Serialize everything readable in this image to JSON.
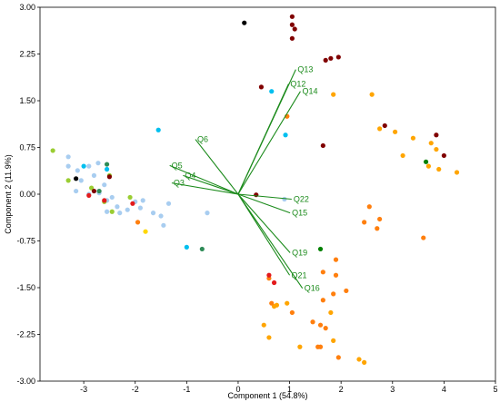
{
  "chart_data": {
    "type": "scatter",
    "title": "",
    "xlabel": "Component 1 (54.8%)",
    "ylabel": "Component 2 (11.9%)",
    "xlim": [
      -3.85,
      5.0
    ],
    "ylim": [
      -3.0,
      3.0
    ],
    "x_ticks": [
      {
        "value": -3,
        "label": "-3"
      },
      {
        "value": -2,
        "label": "-2"
      },
      {
        "value": -1,
        "label": "-1"
      },
      {
        "value": 0,
        "label": "0"
      },
      {
        "value": 1,
        "label": "1"
      },
      {
        "value": 2,
        "label": "2"
      },
      {
        "value": 3,
        "label": "3"
      },
      {
        "value": 4,
        "label": "4"
      },
      {
        "value": 5,
        "label": "5"
      }
    ],
    "y_ticks": [
      {
        "value": -3.0,
        "label": "-3.00"
      },
      {
        "value": -2.25,
        "label": "-2.25"
      },
      {
        "value": -1.5,
        "label": "-1.50"
      },
      {
        "value": -0.75,
        "label": "-0.75"
      },
      {
        "value": 0.0,
        "label": "0.00"
      },
      {
        "value": 0.75,
        "label": "0.75"
      },
      {
        "value": 1.5,
        "label": "1.50"
      },
      {
        "value": 2.25,
        "label": "2.25"
      },
      {
        "value": 3.0,
        "label": "3.00"
      }
    ],
    "grid": false,
    "loading_color": "#1a8a1a",
    "loadings": [
      {
        "label": "Q13",
        "x": 1.12,
        "y": 2.0
      },
      {
        "label": "Q12",
        "x": 0.98,
        "y": 1.77
      },
      {
        "label": "Q14",
        "x": 1.21,
        "y": 1.65
      },
      {
        "label": "Q6",
        "x": -0.83,
        "y": 0.88
      },
      {
        "label": "Q5",
        "x": -1.33,
        "y": 0.46
      },
      {
        "label": "Q4",
        "x": -1.07,
        "y": 0.3
      },
      {
        "label": "Q3",
        "x": -1.29,
        "y": 0.18
      },
      {
        "label": "Q22",
        "x": 1.04,
        "y": -0.08
      },
      {
        "label": "Q15",
        "x": 1.01,
        "y": -0.3
      },
      {
        "label": "Q19",
        "x": 1.01,
        "y": -0.94
      },
      {
        "label": "Q21",
        "x": 1.0,
        "y": -1.3
      },
      {
        "label": "Q16",
        "x": 1.25,
        "y": -1.51
      }
    ],
    "series": [
      {
        "color": "#a8cdf0",
        "points": [
          [
            -3.3,
            0.6
          ],
          [
            -3.3,
            0.45
          ],
          [
            -3.12,
            0.38
          ],
          [
            -2.9,
            0.45
          ],
          [
            -2.72,
            0.5
          ],
          [
            -3.05,
            0.22
          ],
          [
            -2.9,
            0.0
          ],
          [
            -2.7,
            0.02
          ],
          [
            -2.55,
            -0.1
          ],
          [
            -2.35,
            -0.2
          ],
          [
            -2.15,
            -0.25
          ],
          [
            -2.0,
            -0.12
          ],
          [
            -1.9,
            -0.22
          ],
          [
            -1.65,
            -0.3
          ],
          [
            -1.5,
            -0.35
          ],
          [
            -1.45,
            -0.5
          ],
          [
            -1.35,
            -0.15
          ],
          [
            -2.55,
            -0.28
          ],
          [
            -2.3,
            -0.3
          ],
          [
            -0.6,
            -0.3
          ],
          [
            -2.6,
            0.15
          ],
          [
            -2.8,
            0.3
          ],
          [
            0.9,
            -0.08
          ],
          [
            -1.85,
            -0.1
          ],
          [
            -3.15,
            0.05
          ],
          [
            -2.45,
            -0.05
          ]
        ]
      },
      {
        "color": "#00bfef",
        "points": [
          [
            -3.0,
            0.45
          ],
          [
            -2.55,
            0.4
          ],
          [
            -1.55,
            1.03
          ],
          [
            0.65,
            1.65
          ],
          [
            0.92,
            0.95
          ],
          [
            -1.0,
            -0.85
          ]
        ]
      },
      {
        "color": "#9acd32",
        "points": [
          [
            -3.6,
            0.7
          ],
          [
            -3.3,
            0.22
          ],
          [
            -2.85,
            0.1
          ],
          [
            -2.5,
            0.3
          ],
          [
            -2.1,
            -0.05
          ],
          [
            -2.6,
            -0.12
          ],
          [
            -2.45,
            -0.28
          ]
        ]
      },
      {
        "color": "#2e8b57",
        "points": [
          [
            -2.55,
            0.48
          ],
          [
            -2.7,
            0.05
          ],
          [
            -0.7,
            -0.88
          ]
        ]
      },
      {
        "color": "#008000",
        "points": [
          [
            1.6,
            -0.88
          ],
          [
            3.65,
            0.52
          ]
        ]
      },
      {
        "color": "#ffd700",
        "points": [
          [
            -1.8,
            -0.6
          ]
        ]
      },
      {
        "color": "#ffa500",
        "points": [
          [
            1.85,
            1.6
          ],
          [
            2.6,
            1.6
          ],
          [
            0.95,
            1.25
          ],
          [
            2.75,
            1.05
          ],
          [
            3.05,
            1.0
          ],
          [
            3.4,
            0.9
          ],
          [
            3.75,
            0.82
          ],
          [
            3.85,
            0.72
          ],
          [
            3.2,
            0.62
          ],
          [
            3.7,
            0.45
          ],
          [
            4.25,
            0.35
          ],
          [
            3.9,
            0.4
          ],
          [
            0.5,
            -2.1
          ],
          [
            0.6,
            -2.3
          ],
          [
            1.2,
            -2.45
          ],
          [
            1.8,
            -1.9
          ],
          [
            0.95,
            -1.75
          ],
          [
            1.85,
            -2.35
          ],
          [
            2.35,
            -2.65
          ],
          [
            2.45,
            -2.7
          ],
          [
            0.75,
            -1.78
          ],
          [
            0.7,
            -1.8
          ]
        ]
      },
      {
        "color": "#ff7f0e",
        "points": [
          [
            0.95,
            1.25
          ],
          [
            2.55,
            -0.2
          ],
          [
            2.75,
            -0.4
          ],
          [
            2.45,
            -0.45
          ],
          [
            2.7,
            -0.55
          ],
          [
            3.6,
            -0.7
          ],
          [
            1.9,
            -1.05
          ],
          [
            1.65,
            -1.25
          ],
          [
            1.9,
            -1.3
          ],
          [
            2.1,
            -1.55
          ],
          [
            1.85,
            -1.6
          ],
          [
            1.65,
            -1.7
          ],
          [
            1.45,
            -2.05
          ],
          [
            1.6,
            -2.1
          ],
          [
            1.7,
            -2.15
          ],
          [
            1.55,
            -2.45
          ],
          [
            1.6,
            -2.45
          ],
          [
            1.95,
            -2.62
          ],
          [
            -1.95,
            -0.45
          ],
          [
            0.65,
            -1.75
          ],
          [
            0.6,
            -1.35
          ],
          [
            1.05,
            -1.9
          ]
        ]
      },
      {
        "color": "#e31a1c",
        "points": [
          [
            0.6,
            -1.3
          ],
          [
            0.7,
            -1.42
          ],
          [
            -2.6,
            -0.1
          ],
          [
            -2.05,
            -0.15
          ],
          [
            -2.9,
            -0.02
          ]
        ]
      },
      {
        "color": "#800000",
        "points": [
          [
            1.05,
            2.85
          ],
          [
            1.1,
            2.65
          ],
          [
            1.05,
            2.72
          ],
          [
            1.05,
            2.5
          ],
          [
            1.7,
            2.15
          ],
          [
            1.8,
            2.18
          ],
          [
            1.95,
            2.2
          ],
          [
            0.45,
            1.72
          ],
          [
            1.65,
            0.78
          ],
          [
            2.85,
            1.1
          ],
          [
            3.85,
            0.95
          ],
          [
            4.0,
            0.62
          ],
          [
            0.35,
            -0.01
          ],
          [
            -2.8,
            0.05
          ],
          [
            -2.5,
            0.28
          ]
        ]
      },
      {
        "color": "#000000",
        "points": [
          [
            0.12,
            2.75
          ],
          [
            -3.15,
            0.25
          ]
        ]
      }
    ]
  }
}
